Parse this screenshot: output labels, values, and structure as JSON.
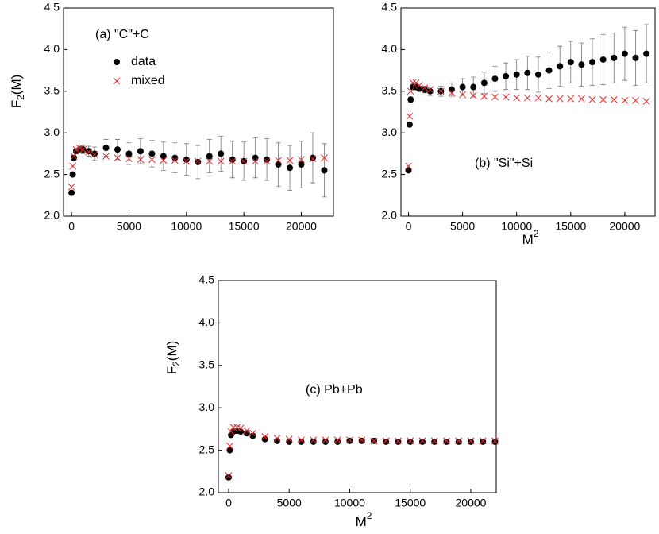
{
  "chart_data": [
    {
      "type": "scatter",
      "annotation": "(a) \"C\"+C",
      "ylabel": [
        "F",
        "2",
        "(M)"
      ],
      "legend": "upper left",
      "x": [
        0,
        100,
        200,
        400,
        700,
        1000,
        1500,
        2000,
        3000,
        4000,
        5000,
        6000,
        7000,
        8000,
        9000,
        10000,
        11000,
        12000,
        13000,
        14000,
        15000,
        16000,
        17000,
        18000,
        19000,
        20000,
        21000,
        22000
      ],
      "series": [
        {
          "name": "data",
          "color": "#000000",
          "marker": "circle",
          "values": [
            2.28,
            2.5,
            2.7,
            2.78,
            2.8,
            2.8,
            2.78,
            2.75,
            2.82,
            2.8,
            2.75,
            2.78,
            2.75,
            2.72,
            2.7,
            2.68,
            2.65,
            2.72,
            2.75,
            2.68,
            2.66,
            2.7,
            2.68,
            2.62,
            2.58,
            2.62,
            2.7,
            2.55
          ],
          "errors": [
            0.02,
            0.02,
            0.03,
            0.03,
            0.04,
            0.05,
            0.06,
            0.08,
            0.1,
            0.12,
            0.13,
            0.15,
            0.16,
            0.17,
            0.18,
            0.19,
            0.2,
            0.2,
            0.21,
            0.22,
            0.23,
            0.24,
            0.25,
            0.26,
            0.27,
            0.28,
            0.3,
            0.32
          ]
        },
        {
          "name": "mixed",
          "color": "#e8262a",
          "marker": "x",
          "values": [
            2.35,
            2.6,
            2.72,
            2.8,
            2.82,
            2.8,
            2.77,
            2.74,
            2.72,
            2.7,
            2.69,
            2.68,
            2.68,
            2.67,
            2.67,
            2.66,
            2.66,
            2.66,
            2.66,
            2.66,
            2.66,
            2.66,
            2.66,
            2.67,
            2.67,
            2.68,
            2.69,
            2.7
          ]
        }
      ],
      "xlim": [
        -700,
        22800
      ],
      "ylim": [
        2.0,
        4.5
      ],
      "xticks": [
        0,
        5000,
        10000,
        15000,
        20000
      ],
      "yticks": [
        {
          "value": 2,
          "label": "2.0"
        },
        2.5,
        {
          "value": 3,
          "label": "3.0"
        },
        3.5,
        {
          "value": 4,
          "label": "4.0"
        },
        4.5
      ]
    },
    {
      "type": "scatter",
      "annotation": "(b) \"Si\"+Si",
      "xlabel": [
        "M",
        "2"
      ],
      "x": [
        0,
        100,
        200,
        400,
        700,
        1000,
        1500,
        2000,
        3000,
        4000,
        5000,
        6000,
        7000,
        8000,
        9000,
        10000,
        11000,
        12000,
        13000,
        14000,
        15000,
        16000,
        17000,
        18000,
        19000,
        20000,
        21000,
        22000
      ],
      "series": [
        {
          "color": "#000000",
          "marker": "circle",
          "values": [
            2.55,
            3.1,
            3.4,
            3.55,
            3.55,
            3.53,
            3.52,
            3.5,
            3.5,
            3.52,
            3.55,
            3.55,
            3.6,
            3.65,
            3.68,
            3.7,
            3.72,
            3.7,
            3.75,
            3.8,
            3.85,
            3.82,
            3.85,
            3.88,
            3.9,
            3.95,
            3.9,
            3.95
          ],
          "errors": [
            0.02,
            0.03,
            0.03,
            0.03,
            0.03,
            0.03,
            0.04,
            0.05,
            0.06,
            0.08,
            0.1,
            0.12,
            0.13,
            0.15,
            0.16,
            0.18,
            0.2,
            0.21,
            0.22,
            0.24,
            0.25,
            0.26,
            0.28,
            0.3,
            0.3,
            0.32,
            0.33,
            0.35
          ]
        },
        {
          "color": "#e8262a",
          "marker": "x",
          "values": [
            2.6,
            3.2,
            3.5,
            3.6,
            3.6,
            3.57,
            3.54,
            3.52,
            3.5,
            3.48,
            3.46,
            3.45,
            3.44,
            3.43,
            3.43,
            3.42,
            3.42,
            3.42,
            3.41,
            3.41,
            3.41,
            3.41,
            3.4,
            3.4,
            3.4,
            3.39,
            3.39,
            3.38
          ]
        }
      ],
      "xlim": [
        -700,
        22800
      ],
      "ylim": [
        2.0,
        4.5
      ],
      "xticks": [
        0,
        5000,
        10000,
        15000,
        20000
      ],
      "yticks": [
        {
          "value": 2,
          "label": "2.0"
        },
        2.5,
        {
          "value": 3,
          "label": "3.0"
        },
        3.5,
        {
          "value": 4,
          "label": "4.0"
        },
        4.5
      ]
    },
    {
      "type": "scatter",
      "annotation": "(c) Pb+Pb",
      "ylabel": [
        "F",
        "2",
        "(M)"
      ],
      "xlabel": [
        "M",
        "2"
      ],
      "x": [
        0,
        100,
        200,
        400,
        700,
        1000,
        1500,
        2000,
        3000,
        4000,
        5000,
        6000,
        7000,
        8000,
        9000,
        10000,
        11000,
        12000,
        13000,
        14000,
        15000,
        16000,
        17000,
        18000,
        19000,
        20000,
        21000,
        22000
      ],
      "series": [
        {
          "color": "#000000",
          "marker": "circle",
          "values": [
            2.18,
            2.5,
            2.68,
            2.72,
            2.73,
            2.72,
            2.7,
            2.67,
            2.63,
            2.61,
            2.6,
            2.6,
            2.6,
            2.6,
            2.6,
            2.61,
            2.61,
            2.61,
            2.6,
            2.6,
            2.6,
            2.6,
            2.6,
            2.6,
            2.6,
            2.6,
            2.6,
            2.6
          ],
          "errors": [
            0.01,
            0.01,
            0.01,
            0.01,
            0.01,
            0.01,
            0.01,
            0.01,
            0.01,
            0.01,
            0.01,
            0.01,
            0.01,
            0.015,
            0.015,
            0.015,
            0.015,
            0.015,
            0.02,
            0.02,
            0.02,
            0.02,
            0.02,
            0.02,
            0.025,
            0.025,
            0.025,
            0.03
          ]
        },
        {
          "color": "#e8262a",
          "marker": "x",
          "values": [
            2.2,
            2.55,
            2.72,
            2.77,
            2.77,
            2.76,
            2.73,
            2.7,
            2.66,
            2.64,
            2.63,
            2.62,
            2.62,
            2.62,
            2.62,
            2.62,
            2.62,
            2.61,
            2.61,
            2.61,
            2.61,
            2.61,
            2.61,
            2.61,
            2.61,
            2.61,
            2.61,
            2.61
          ]
        }
      ],
      "xlim": [
        -850,
        22100
      ],
      "ylim": [
        2.0,
        4.5
      ],
      "xticks": [
        0,
        5000,
        10000,
        15000,
        20000
      ],
      "yticks": [
        {
          "value": 2,
          "label": "2.0"
        },
        2.5,
        {
          "value": 3,
          "label": "3.0"
        },
        3.5,
        {
          "value": 4,
          "label": "4.0"
        },
        4.5
      ]
    }
  ]
}
